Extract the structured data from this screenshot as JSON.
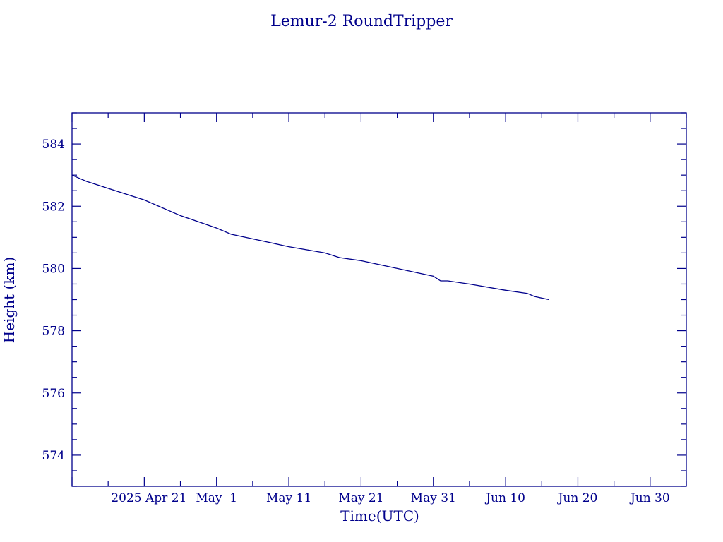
{
  "chart_data": {
    "type": "line",
    "title": "Lemur-2 RoundTripper",
    "xlabel": "Time(UTC)",
    "ylabel": "Height (km)",
    "x_tick_labels": [
      "2025 Apr 21",
      "May  1",
      "May 11",
      "May 21",
      "May 31",
      "Jun 10",
      "Jun 20",
      "Jun 30"
    ],
    "x_tick_dates": [
      "2025-04-21",
      "2025-05-01",
      "2025-05-11",
      "2025-05-21",
      "2025-05-31",
      "2025-06-10",
      "2025-06-20",
      "2025-06-30"
    ],
    "xlim": [
      "2025-04-11",
      "2025-07-05"
    ],
    "y_tick_labels": [
      "574",
      "576",
      "578",
      "580",
      "582",
      "584"
    ],
    "ylim": [
      573,
      585
    ],
    "grid": false,
    "series": [
      {
        "x": [
          "2025-04-11",
          "2025-04-13",
          "2025-04-17",
          "2025-04-21",
          "2025-04-26",
          "2025-05-01",
          "2025-05-03",
          "2025-05-08",
          "2025-05-11",
          "2025-05-16",
          "2025-05-18",
          "2025-05-21",
          "2025-05-26",
          "2025-05-29",
          "2025-05-31",
          "2025-06-01",
          "2025-06-02",
          "2025-06-05",
          "2025-06-10",
          "2025-06-13",
          "2025-06-14",
          "2025-06-16"
        ],
        "y": [
          583.0,
          582.8,
          582.5,
          582.2,
          581.7,
          581.3,
          581.1,
          580.85,
          580.7,
          580.5,
          580.35,
          580.25,
          580.0,
          579.85,
          579.75,
          579.6,
          579.6,
          579.5,
          579.3,
          579.2,
          579.1,
          579.0
        ]
      }
    ]
  },
  "colors": {
    "axis": "#00008b",
    "line": "#00008b",
    "background": "#ffffff"
  }
}
